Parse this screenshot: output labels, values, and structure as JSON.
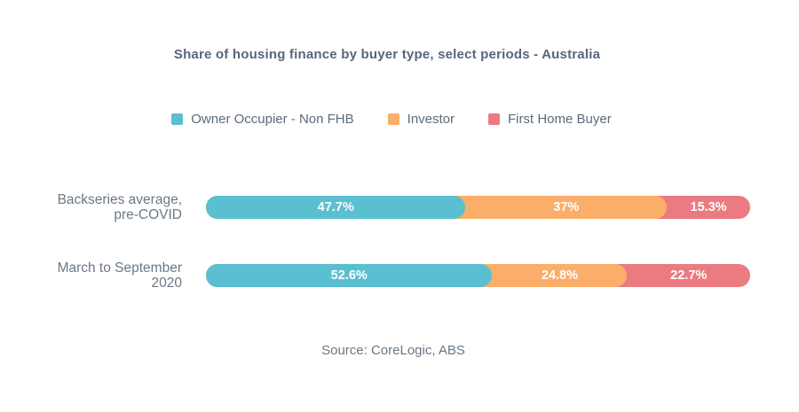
{
  "page": {
    "background_color": "#ffffff"
  },
  "chart_data": {
    "type": "bar",
    "orientation": "horizontal",
    "stacked": true,
    "title": "Share of housing finance by buyer type, select periods - Australia",
    "source": "Source: CoreLogic, ABS",
    "legend_position": "top-center",
    "grid": false,
    "axes_visible": false,
    "xlim": [
      0,
      100
    ],
    "categories": [
      [
        "Backseries average,",
        "pre-COVID"
      ],
      [
        "March to September",
        "2020"
      ]
    ],
    "series": [
      {
        "name": "Owner Occupier - Non FHB",
        "color": "#5ABFD0",
        "values": [
          47.7,
          52.6
        ],
        "value_labels": [
          "47.7%",
          "52.6%"
        ]
      },
      {
        "name": "Investor",
        "color": "#FAAE69",
        "values": [
          37,
          24.8
        ],
        "value_labels": [
          "37%",
          "24.8%"
        ]
      },
      {
        "name": "First Home Buyer",
        "color": "#EB7A81",
        "values": [
          15.3,
          22.7
        ],
        "value_labels": [
          "15.3%",
          "22.7%"
        ]
      }
    ],
    "value_label_color": "#ffffff",
    "title_color": "#54677d",
    "legend_text_color": "#5b6b7a",
    "category_label_color": "#6b7885",
    "source_text_color": "#6b7885"
  }
}
